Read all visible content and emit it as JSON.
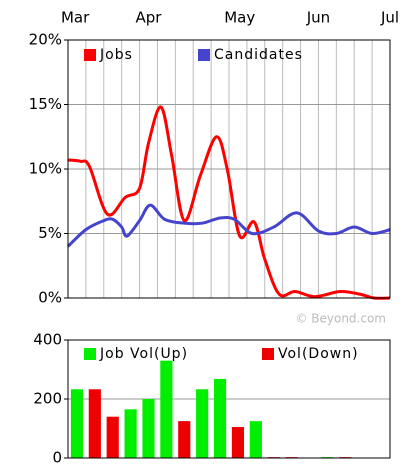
{
  "chart_data": [
    {
      "type": "line",
      "xlim": [
        0,
        18
      ],
      "xticks": [
        {
          "value": 0.4,
          "label": "Mar"
        },
        {
          "value": 4.5,
          "label": "Apr"
        },
        {
          "value": 9.6,
          "label": "May"
        },
        {
          "value": 14,
          "label": "Jun"
        },
        {
          "value": 18,
          "label": "Jul"
        }
      ],
      "xgrid": [
        1,
        2,
        3,
        4,
        5,
        6,
        7,
        8,
        9,
        10,
        11,
        12,
        13,
        14,
        15,
        16,
        17
      ],
      "ylim": [
        0,
        20
      ],
      "yticks": [
        {
          "value": 0,
          "label": "0%"
        },
        {
          "value": 5,
          "label": "5%"
        },
        {
          "value": 10,
          "label": "10%"
        },
        {
          "value": 15,
          "label": "15%"
        },
        {
          "value": 20,
          "label": "20%"
        }
      ],
      "grid": true,
      "legend": "top-left",
      "annotation": "© Beyond.com",
      "series": [
        {
          "name": "Jobs",
          "color": "#ff0000",
          "x": [
            0,
            0.7,
            1.2,
            2.2,
            3.2,
            4,
            4.5,
            5.2,
            5.8,
            6.5,
            7.4,
            8.3,
            8.9,
            9.6,
            10.4,
            11,
            11.8,
            12.7,
            13.8,
            15.2,
            16.3,
            17.1,
            18
          ],
          "values": [
            10.7,
            10.6,
            10.2,
            6.5,
            7.8,
            8.5,
            12,
            14.8,
            11,
            6,
            9.5,
            12.5,
            10,
            4.8,
            5.9,
            3,
            0.3,
            0.5,
            0.1,
            0.5,
            0.3,
            0,
            0
          ]
        },
        {
          "name": "Candidates",
          "color": "#4444cc",
          "x": [
            0,
            1,
            2,
            2.5,
            3,
            3.3,
            4,
            4.6,
            5.4,
            6.5,
            7.5,
            8.5,
            9.3,
            10.3,
            11.5,
            12.8,
            14,
            15,
            16,
            17,
            18
          ],
          "values": [
            4,
            5.3,
            6,
            6.1,
            5.5,
            4.8,
            6,
            7.2,
            6.1,
            5.8,
            5.8,
            6.2,
            6.1,
            5,
            5.5,
            6.6,
            5.2,
            5,
            5.5,
            5,
            5.3
          ]
        }
      ]
    },
    {
      "type": "bar",
      "xlim": [
        0,
        18
      ],
      "x": [
        0.5,
        1.5,
        2.5,
        3.5,
        4.5,
        5.5,
        6.5,
        7.5,
        8.5,
        9.5,
        10.5,
        11.5,
        12.5,
        13.5,
        14.5,
        15.5,
        16.5,
        17.5
      ],
      "ylim": [
        0,
        400
      ],
      "yticks": [
        0,
        200,
        400
      ],
      "grid": true,
      "legend": "top",
      "series": [
        {
          "name": "Job Vol(Up)",
          "color": "#00ee00",
          "values": [
            233,
            null,
            null,
            165,
            200,
            330,
            null,
            233,
            268,
            null,
            125,
            null,
            null,
            null,
            3,
            null,
            null,
            null
          ]
        },
        {
          "name": "Vol(Down)",
          "color": "#ee0000",
          "values": [
            null,
            233,
            140,
            null,
            null,
            null,
            125,
            null,
            null,
            105,
            null,
            3,
            3,
            null,
            null,
            3,
            null,
            null
          ]
        }
      ]
    }
  ]
}
